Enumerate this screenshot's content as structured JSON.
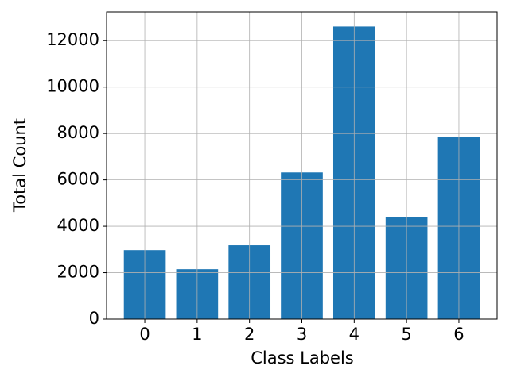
{
  "chart_data": {
    "type": "bar",
    "x_label": "Class Labels",
    "y_label": "Total Count",
    "categories": [
      "0",
      "1",
      "2",
      "3",
      "4",
      "5",
      "6"
    ],
    "values": [
      2970,
      2150,
      3180,
      6320,
      12610,
      4380,
      7860
    ],
    "color": "#1f77b4",
    "ylim": [
      0,
      13240
    ],
    "yticks": [
      0,
      2000,
      4000,
      6000,
      8000,
      10000,
      12000
    ],
    "grid": true
  }
}
